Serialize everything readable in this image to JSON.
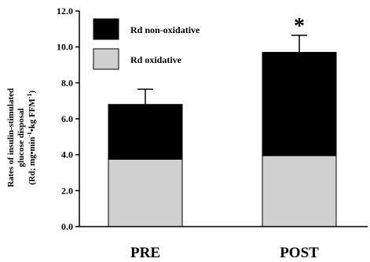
{
  "chart_data": {
    "type": "bar",
    "stacked": true,
    "categories": [
      "PRE",
      "POST"
    ],
    "series": [
      {
        "name": "Rd oxidative",
        "values": [
          3.75,
          3.95
        ],
        "color": "#d0d0d0"
      },
      {
        "name": "Rd non-oxidative",
        "values": [
          3.05,
          5.75
        ],
        "color": "#000000"
      }
    ],
    "totals": [
      6.8,
      9.7
    ],
    "error_bars": [
      0.85,
      0.95
    ],
    "ylim": [
      0,
      12
    ],
    "yticks": [
      "0.0",
      "2.0",
      "4.0",
      "6.0",
      "8.0",
      "10.0",
      "12.0"
    ],
    "ytick_values": [
      0,
      2,
      4,
      6,
      8,
      10,
      12
    ],
    "ylabel_lines": [
      "Rates of insulin-stimulated",
      "glucose disposal",
      "(Rd; mg•min",
      "-1",
      "•kg FFM",
      "-1",
      ")"
    ],
    "annotation": {
      "text": "*",
      "category": "POST"
    },
    "legend": {
      "placement": "top-left",
      "order": [
        "Rd non-oxidative",
        "Rd oxidative"
      ]
    },
    "grid": false
  }
}
